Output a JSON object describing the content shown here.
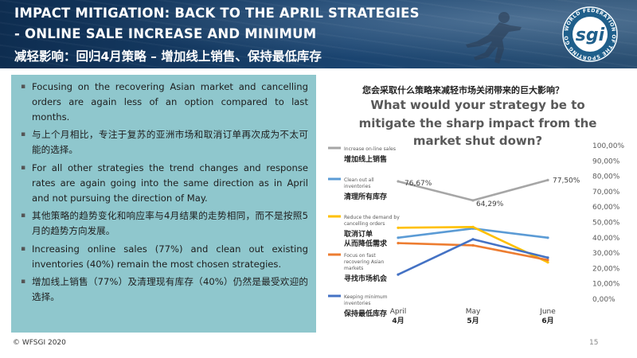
{
  "header": {
    "title_line_1": "IMPACT MITIGATION: BACK TO THE APRIL STRATEGIES",
    "title_line_2": "- ONLINE SALE INCREASE AND MINIMUM",
    "title_line_3": "减轻影响：回归4月策略 – 增加线上销售、保持最低库存",
    "logo_text": "sgi",
    "logo_ring_text": "WORLD FEDERATION OF THE SPORTING GOODS INDUSTRY"
  },
  "bullets": [
    {
      "lang": "en",
      "text": "Focusing on the recovering Asian market and cancelling orders are again less of an option compared to last months."
    },
    {
      "lang": "zh",
      "text": "与上个月相比，专注于复苏的亚洲市场和取消订单再次成为不太可能的选择。"
    },
    {
      "lang": "en",
      "text": "For all other strategies the trend changes and response rates are again going into the same direction as in April and not pursuing the direction of May."
    },
    {
      "lang": "zh",
      "text": "其他策略的趋势变化和响应率与4月结果的走势相同，而不是按照5月的趋势方向发展。"
    },
    {
      "lang": "en",
      "text": "Increasing online sales (77%) and clean out existing inventories (40%) remain the most chosen strategies."
    },
    {
      "lang": "zh",
      "text": "增加线上销售（77%）及清理现有库存（40%）仍然是最受欢迎的选择。"
    }
  ],
  "chart_data": {
    "type": "line",
    "title_zh": "您会采取什么策略来减轻市场关闭带来的巨大影响？",
    "title_en_lines": [
      "What would your strategy be to",
      "mitigate the sharp impact from the",
      "market shut down?"
    ],
    "categories": [
      "April",
      "May",
      "June"
    ],
    "categories_zh": [
      "4月",
      "5月",
      "6月"
    ],
    "ylim": [
      0,
      100
    ],
    "y_ticks": [
      "0,00%",
      "10,00%",
      "20,00%",
      "30,00%",
      "40,00%",
      "50,00%",
      "60,00%",
      "70,00%",
      "80,00%",
      "90,00%",
      "100,00%"
    ],
    "grid": false,
    "legend_position": "left",
    "series": [
      {
        "name": "Increase on-line sales",
        "name_zh": "增加线上销售",
        "color": "#a6a6a6",
        "values": [
          76.67,
          64.29,
          77.5
        ],
        "labels": [
          "76,67%",
          "64,29%",
          "77,50%"
        ]
      },
      {
        "name": "Clean out all inventories",
        "name_zh": "清理所有库存",
        "color": "#5b9bd5",
        "values": [
          40,
          46,
          40
        ],
        "labels": []
      },
      {
        "name": "Reduce the demand by cancelling orders",
        "name_zh": "取消订单从而降低需求",
        "color": "#ffc000",
        "values": [
          46.5,
          47,
          24
        ],
        "labels": []
      },
      {
        "name": "Focus on fast recovering Asian markets",
        "name_zh": "寻找市场机会",
        "color": "#ed7d31",
        "values": [
          36.5,
          35,
          25.5
        ],
        "labels": []
      },
      {
        "name": "Keeping minimum inventories",
        "name_zh": "保持最低库存",
        "color": "#4472c4",
        "values": [
          16,
          39,
          27
        ],
        "labels": []
      }
    ]
  },
  "footer": {
    "copyright": "© WFSGI 2020",
    "page_number": "15"
  }
}
